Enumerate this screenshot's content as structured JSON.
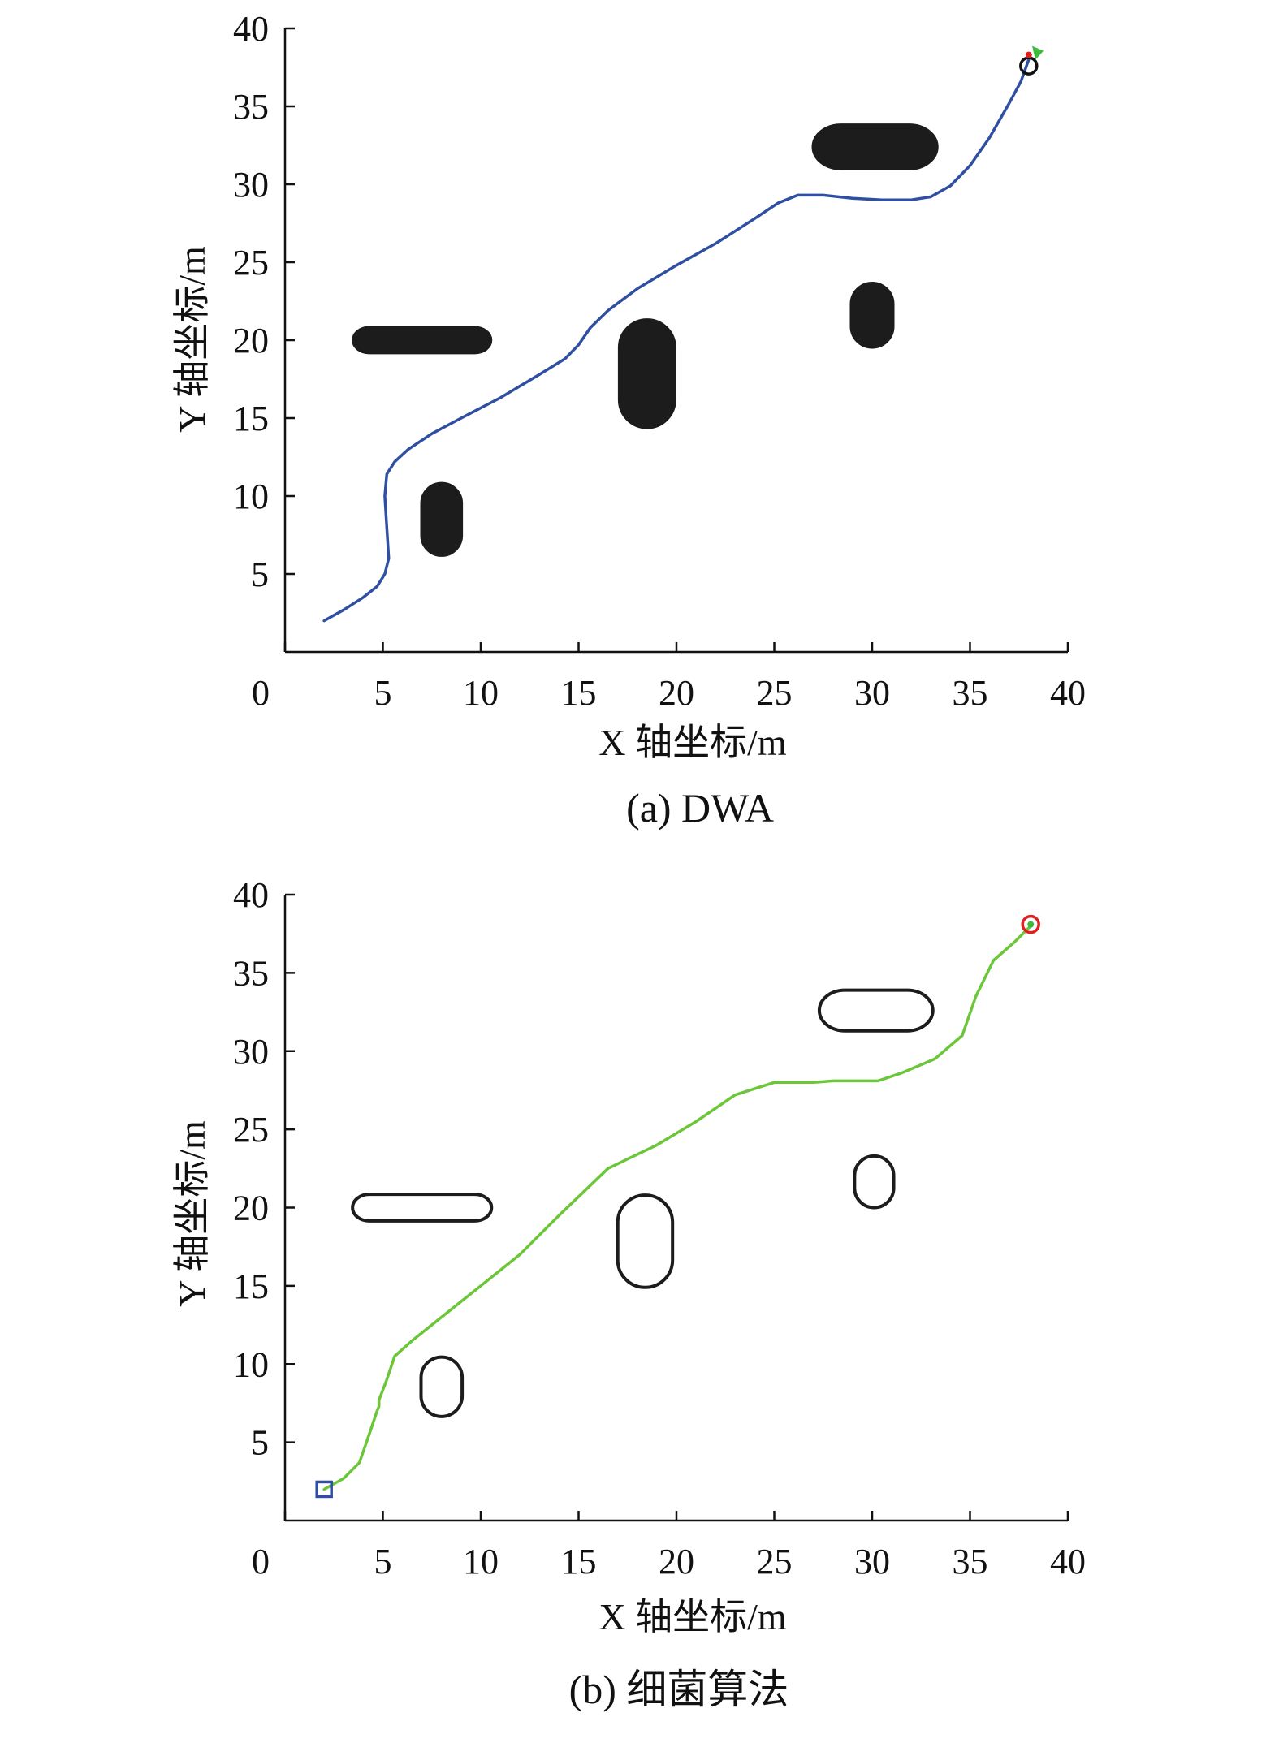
{
  "chart_data": [
    {
      "type": "line",
      "panel": "a",
      "caption": "(a) DWA",
      "xlabel": "X 轴坐标/m",
      "ylabel": "Y 轴坐标/m",
      "xlim": [
        0,
        40
      ],
      "ylim": [
        0,
        40
      ],
      "xticks": [
        "0",
        "5",
        "10",
        "15",
        "20",
        "25",
        "30",
        "35",
        "40"
      ],
      "yticks": [
        "5",
        "10",
        "15",
        "20",
        "25",
        "30",
        "35",
        "40"
      ],
      "obstacle_style": "filled",
      "obstacles": [
        {
          "x1": 4.3,
          "x2": 9.7,
          "y1": 20,
          "y2": 20,
          "r": 0.85
        },
        {
          "x1": 8,
          "x2": 8,
          "y1": 7.2,
          "y2": 9.8,
          "r": 1.05
        },
        {
          "x1": 18.5,
          "x2": 18.5,
          "y1": 15.8,
          "y2": 19.9,
          "r": 1.45
        },
        {
          "x1": 28.4,
          "x2": 31.9,
          "y1": 32.4,
          "y2": 32.4,
          "r": 1.45
        },
        {
          "x1": 30,
          "x2": 30,
          "y1": 20.6,
          "y2": 22.6,
          "r": 1.1
        }
      ],
      "series": [
        {
          "name": "DWA path",
          "color": "#2f4fa2",
          "x": [
            2,
            3,
            4,
            4.7,
            5.1,
            5.3,
            5.2,
            5.1,
            5.2,
            5.6,
            6.3,
            7.5,
            9,
            11,
            13,
            14.3,
            15,
            15.6,
            16.5,
            18,
            20,
            22,
            24,
            25.2,
            26.2,
            27.5,
            29,
            30.5,
            32,
            33,
            34,
            35,
            36,
            37,
            37.6,
            38
          ],
          "y": [
            2,
            2.7,
            3.5,
            4.2,
            5,
            6,
            8,
            10,
            11.4,
            12.2,
            13,
            14,
            15,
            16.3,
            17.8,
            18.8,
            19.7,
            20.8,
            21.9,
            23.3,
            24.8,
            26.2,
            27.8,
            28.8,
            29.3,
            29.3,
            29.1,
            29,
            29,
            29.2,
            29.9,
            31.2,
            33,
            35.2,
            36.6,
            38
          ]
        }
      ],
      "markers": [
        {
          "name": "goal",
          "shape": "circle-open",
          "color": "#111111",
          "x": 38,
          "y": 37.6
        },
        {
          "name": "end-arrow",
          "shape": "triangle",
          "color": "#3dbb3d",
          "x": 38.3,
          "y": 38.3
        },
        {
          "name": "end-dot",
          "shape": "dot",
          "color": "#e02020",
          "x": 38,
          "y": 38.3
        }
      ]
    },
    {
      "type": "line",
      "panel": "b",
      "caption": "(b) 细菌算法",
      "xlabel": "X 轴坐标/m",
      "ylabel": "Y 轴坐标/m",
      "xlim": [
        0,
        40
      ],
      "ylim": [
        0,
        40
      ],
      "xticks": [
        "0",
        "5",
        "10",
        "15",
        "20",
        "25",
        "30",
        "35",
        "40"
      ],
      "yticks": [
        "5",
        "10",
        "15",
        "20",
        "25",
        "30",
        "35",
        "40"
      ],
      "obstacle_style": "outline",
      "obstacles": [
        {
          "x1": 4.3,
          "x2": 9.7,
          "y1": 20,
          "y2": 20,
          "r": 0.85
        },
        {
          "x1": 8,
          "x2": 8,
          "y1": 7.7,
          "y2": 9.4,
          "r": 1.05
        },
        {
          "x1": 18.4,
          "x2": 18.4,
          "y1": 16.3,
          "y2": 19.4,
          "r": 1.4
        },
        {
          "x1": 28.6,
          "x2": 31.8,
          "y1": 32.6,
          "y2": 32.6,
          "r": 1.3
        },
        {
          "x1": 30.1,
          "x2": 30.1,
          "y1": 21,
          "y2": 22.3,
          "r": 1.0
        }
      ],
      "series": [
        {
          "name": "Bacterial algorithm path",
          "color": "#6cc63a",
          "x": [
            2,
            3,
            3.8,
            4.3,
            4.7,
            4.8,
            4.8,
            5.2,
            5.6,
            6.5,
            8,
            10,
            12,
            14,
            16.5,
            17.5,
            19,
            21,
            23,
            25,
            27,
            28,
            30.3,
            31.5,
            33.2,
            34.6,
            35.3,
            36.2,
            37.3,
            38.1
          ],
          "y": [
            2,
            2.7,
            3.7,
            5.5,
            7,
            7.3,
            7.7,
            9,
            10.5,
            11.5,
            13,
            15,
            17,
            19.5,
            22.5,
            23.1,
            24,
            25.5,
            27.2,
            28,
            28,
            28.1,
            28.1,
            28.6,
            29.5,
            31,
            33.5,
            35.8,
            37,
            38
          ]
        }
      ],
      "markers": [
        {
          "name": "start",
          "shape": "square-open",
          "color": "#2f4fa2",
          "x": 2,
          "y": 2
        },
        {
          "name": "goal",
          "shape": "circle-open",
          "color": "#e02020",
          "x": 38.1,
          "y": 38.1
        },
        {
          "name": "goal-dot",
          "shape": "dot",
          "color": "#3dbb3d",
          "x": 38.1,
          "y": 38.1
        }
      ]
    }
  ]
}
